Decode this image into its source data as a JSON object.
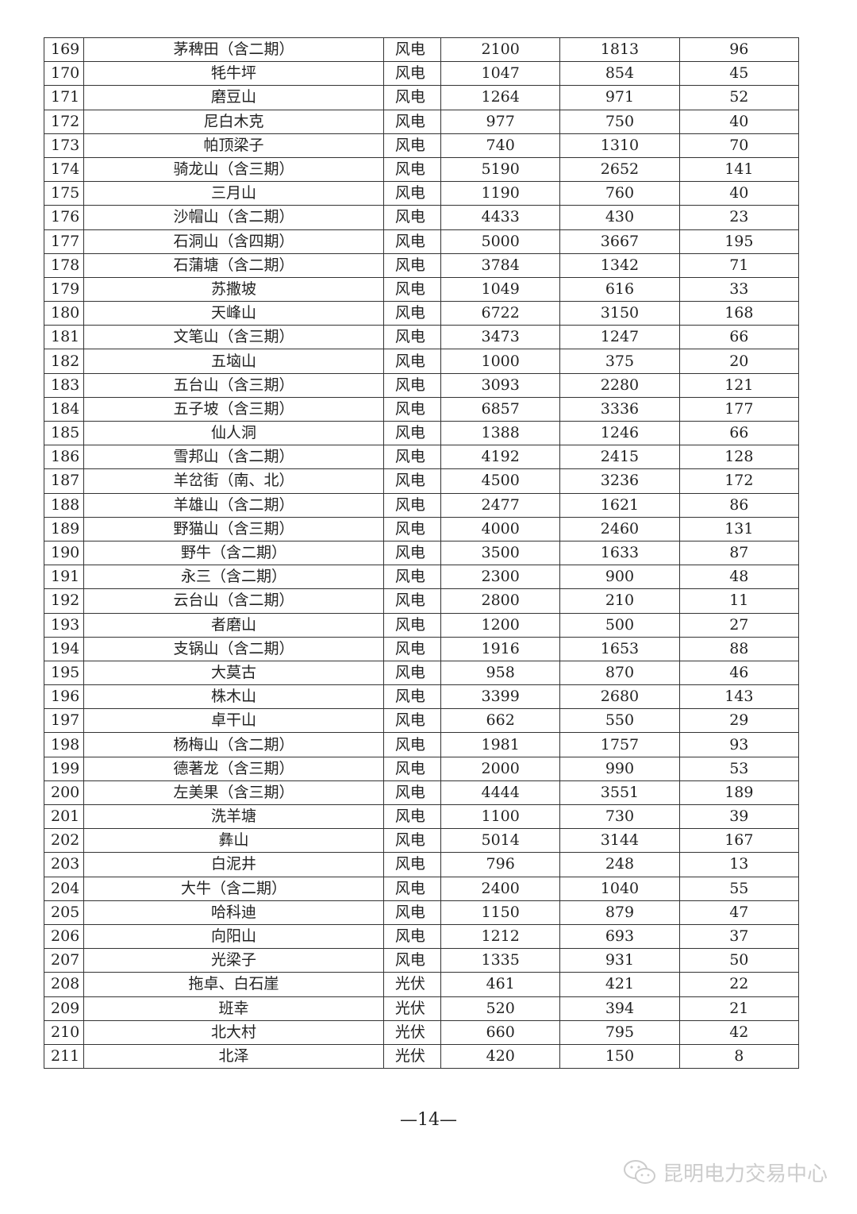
{
  "table": {
    "rows": [
      [
        "169",
        "茅稗田（含二期）",
        "风电",
        "2100",
        "1813",
        "96"
      ],
      [
        "170",
        "牦牛坪",
        "风电",
        "1047",
        "854",
        "45"
      ],
      [
        "171",
        "磨豆山",
        "风电",
        "1264",
        "971",
        "52"
      ],
      [
        "172",
        "尼白木克",
        "风电",
        "977",
        "750",
        "40"
      ],
      [
        "173",
        "帕顶梁子",
        "风电",
        "740",
        "1310",
        "70"
      ],
      [
        "174",
        "骑龙山（含三期）",
        "风电",
        "5190",
        "2652",
        "141"
      ],
      [
        "175",
        "三月山",
        "风电",
        "1190",
        "760",
        "40"
      ],
      [
        "176",
        "沙帽山（含二期）",
        "风电",
        "4433",
        "430",
        "23"
      ],
      [
        "177",
        "石洞山（含四期）",
        "风电",
        "5000",
        "3667",
        "195"
      ],
      [
        "178",
        "石蒲塘（含二期）",
        "风电",
        "3784",
        "1342",
        "71"
      ],
      [
        "179",
        "苏撒坡",
        "风电",
        "1049",
        "616",
        "33"
      ],
      [
        "180",
        "天峰山",
        "风电",
        "6722",
        "3150",
        "168"
      ],
      [
        "181",
        "文笔山（含三期）",
        "风电",
        "3473",
        "1247",
        "66"
      ],
      [
        "182",
        "五垴山",
        "风电",
        "1000",
        "375",
        "20"
      ],
      [
        "183",
        "五台山（含三期）",
        "风电",
        "3093",
        "2280",
        "121"
      ],
      [
        "184",
        "五子坡（含三期）",
        "风电",
        "6857",
        "3336",
        "177"
      ],
      [
        "185",
        "仙人洞",
        "风电",
        "1388",
        "1246",
        "66"
      ],
      [
        "186",
        "雪邦山（含二期）",
        "风电",
        "4192",
        "2415",
        "128"
      ],
      [
        "187",
        "羊岔街（南、北）",
        "风电",
        "4500",
        "3236",
        "172"
      ],
      [
        "188",
        "羊雄山（含二期）",
        "风电",
        "2477",
        "1621",
        "86"
      ],
      [
        "189",
        "野猫山（含三期）",
        "风电",
        "4000",
        "2460",
        "131"
      ],
      [
        "190",
        "野牛（含二期）",
        "风电",
        "3500",
        "1633",
        "87"
      ],
      [
        "191",
        "永三（含二期）",
        "风电",
        "2300",
        "900",
        "48"
      ],
      [
        "192",
        "云台山（含二期）",
        "风电",
        "2800",
        "210",
        "11"
      ],
      [
        "193",
        "者磨山",
        "风电",
        "1200",
        "500",
        "27"
      ],
      [
        "194",
        "支锅山（含二期）",
        "风电",
        "1916",
        "1653",
        "88"
      ],
      [
        "195",
        "大莫古",
        "风电",
        "958",
        "870",
        "46"
      ],
      [
        "196",
        "株木山",
        "风电",
        "3399",
        "2680",
        "143"
      ],
      [
        "197",
        "卓干山",
        "风电",
        "662",
        "550",
        "29"
      ],
      [
        "198",
        "杨梅山（含二期）",
        "风电",
        "1981",
        "1757",
        "93"
      ],
      [
        "199",
        "德著龙（含三期）",
        "风电",
        "2000",
        "990",
        "53"
      ],
      [
        "200",
        "左美果（含三期）",
        "风电",
        "4444",
        "3551",
        "189"
      ],
      [
        "201",
        "洗羊塘",
        "风电",
        "1100",
        "730",
        "39"
      ],
      [
        "202",
        "彝山",
        "风电",
        "5014",
        "3144",
        "167"
      ],
      [
        "203",
        "白泥井",
        "风电",
        "796",
        "248",
        "13"
      ],
      [
        "204",
        "大牛（含二期）",
        "风电",
        "2400",
        "1040",
        "55"
      ],
      [
        "205",
        "哈科迪",
        "风电",
        "1150",
        "879",
        "47"
      ],
      [
        "206",
        "向阳山",
        "风电",
        "1212",
        "693",
        "37"
      ],
      [
        "207",
        "光梁子",
        "风电",
        "1335",
        "931",
        "50"
      ],
      [
        "208",
        "拖卓、白石崖",
        "光伏",
        "461",
        "421",
        "22"
      ],
      [
        "209",
        "班幸",
        "光伏",
        "520",
        "394",
        "21"
      ],
      [
        "210",
        "北大村",
        "光伏",
        "660",
        "795",
        "42"
      ],
      [
        "211",
        "北泽",
        "光伏",
        "420",
        "150",
        "8"
      ]
    ]
  },
  "footer": {
    "page_number": "—14—"
  },
  "watermark": {
    "text": "昆明电力交易中心",
    "icon": "wechat-icon"
  }
}
